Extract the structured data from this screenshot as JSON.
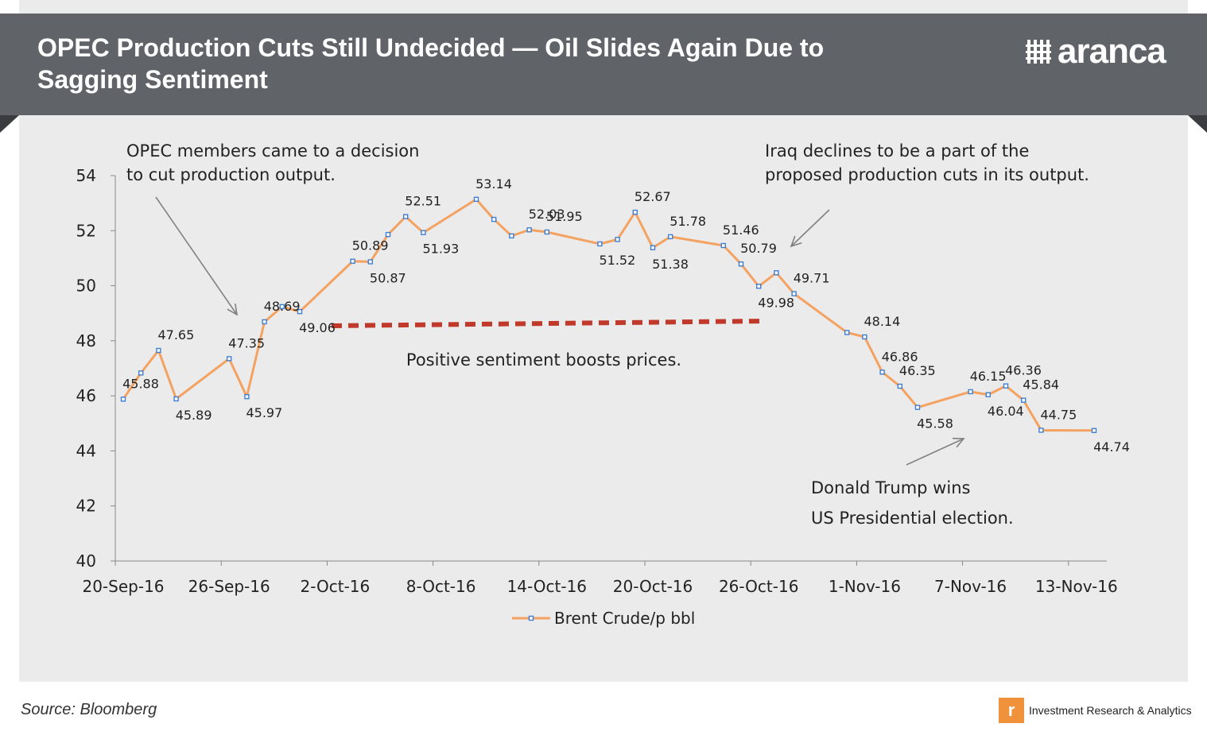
{
  "header": {
    "title": "OPEC Production Cuts Still Undecided — Oil Slides Again Due to Sagging Sentiment",
    "brand": "aranca"
  },
  "footer": {
    "source": "Source: Bloomberg",
    "brand_tagline": "Investment Research & Analytics",
    "badge_letter": "r"
  },
  "colors": {
    "header_bg": "#606469",
    "panel_bg": "#ebebeb",
    "series_line": "#f4a261",
    "marker": "#3f7fd1",
    "sentiment_dash": "#c0392b",
    "arrow": "#808080"
  },
  "annotations": {
    "opec": [
      "OPEC members came to a decision",
      "to cut production output."
    ],
    "iraq": [
      "Iraq declines to be a part of the",
      "proposed production cuts in its output."
    ],
    "positive": "Positive sentiment boosts prices.",
    "trump": [
      "Donald Trump wins",
      "US Presidential election."
    ]
  },
  "chart_data": {
    "type": "line",
    "title": "OPEC Production Cuts Still Undecided — Oil Slides Again Due to Sagging Sentiment",
    "xlabel": "",
    "ylabel": "",
    "ylim": [
      40,
      54
    ],
    "yticks": [
      40,
      42,
      44,
      46,
      48,
      50,
      52,
      54
    ],
    "xtick_labels": [
      "20-Sep-16",
      "26-Sep-16",
      "2-Oct-16",
      "8-Oct-16",
      "14-Oct-16",
      "20-Oct-16",
      "26-Oct-16",
      "1-Nov-16",
      "7-Nov-16",
      "13-Nov-16"
    ],
    "x_start": "2016-09-20",
    "grid": false,
    "legend": "bottom-center",
    "series": [
      {
        "name": "Brent Crude/p bbl",
        "points": [
          {
            "x": "2016-09-20",
            "y": 45.88,
            "label": "45.88"
          },
          {
            "x": "2016-09-21",
            "y": 46.83
          },
          {
            "x": "2016-09-22",
            "y": 47.65,
            "label": "47.65"
          },
          {
            "x": "2016-09-23",
            "y": 45.89,
            "label": "45.89"
          },
          {
            "x": "2016-09-26",
            "y": 47.35,
            "label": "47.35"
          },
          {
            "x": "2016-09-27",
            "y": 45.97,
            "label": "45.97"
          },
          {
            "x": "2016-09-28",
            "y": 48.69,
            "label": "48.69"
          },
          {
            "x": "2016-09-29",
            "y": 49.24
          },
          {
            "x": "2016-09-30",
            "y": 49.06,
            "label": "49.06"
          },
          {
            "x": "2016-10-03",
            "y": 50.89,
            "label": "50.89"
          },
          {
            "x": "2016-10-04",
            "y": 50.87,
            "label": "50.87"
          },
          {
            "x": "2016-10-05",
            "y": 51.86
          },
          {
            "x": "2016-10-06",
            "y": 52.51,
            "label": "52.51"
          },
          {
            "x": "2016-10-07",
            "y": 51.93,
            "label": "51.93"
          },
          {
            "x": "2016-10-10",
            "y": 53.14,
            "label": "53.14"
          },
          {
            "x": "2016-10-11",
            "y": 52.41
          },
          {
            "x": "2016-10-12",
            "y": 51.81
          },
          {
            "x": "2016-10-13",
            "y": 52.03,
            "label": "52.03"
          },
          {
            "x": "2016-10-14",
            "y": 51.95,
            "label": "51.95"
          },
          {
            "x": "2016-10-17",
            "y": 51.52,
            "label": "51.52"
          },
          {
            "x": "2016-10-18",
            "y": 51.68
          },
          {
            "x": "2016-10-19",
            "y": 52.67,
            "label": "52.67"
          },
          {
            "x": "2016-10-20",
            "y": 51.38,
            "label": "51.38"
          },
          {
            "x": "2016-10-21",
            "y": 51.78,
            "label": "51.78"
          },
          {
            "x": "2016-10-24",
            "y": 51.46,
            "label": "51.46"
          },
          {
            "x": "2016-10-25",
            "y": 50.79,
            "label": "50.79"
          },
          {
            "x": "2016-10-26",
            "y": 49.98,
            "label": "49.98"
          },
          {
            "x": "2016-10-27",
            "y": 50.47
          },
          {
            "x": "2016-10-28",
            "y": 49.71,
            "label": "49.71"
          },
          {
            "x": "2016-10-31",
            "y": 48.3
          },
          {
            "x": "2016-11-01",
            "y": 48.14,
            "label": "48.14"
          },
          {
            "x": "2016-11-02",
            "y": 46.86,
            "label": "46.86"
          },
          {
            "x": "2016-11-03",
            "y": 46.35,
            "label": "46.35"
          },
          {
            "x": "2016-11-04",
            "y": 45.58,
            "label": "45.58"
          },
          {
            "x": "2016-11-07",
            "y": 46.15,
            "label": "46.15"
          },
          {
            "x": "2016-11-08",
            "y": 46.04,
            "label": "46.04"
          },
          {
            "x": "2016-11-09",
            "y": 46.36,
            "label": "46.36"
          },
          {
            "x": "2016-11-10",
            "y": 45.84,
            "label": "45.84"
          },
          {
            "x": "2016-11-11",
            "y": 44.75,
            "label": "44.75"
          },
          {
            "x": "2016-11-14",
            "y": 44.74,
            "label": "44.74"
          }
        ]
      }
    ]
  }
}
